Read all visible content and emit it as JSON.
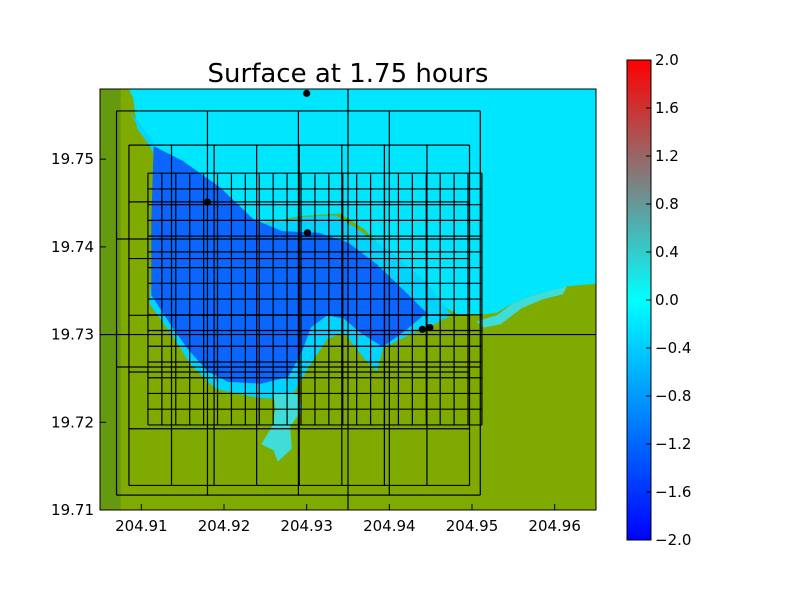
{
  "chart_data": {
    "type": "heatmap",
    "title": "Surface at 1.75 hours",
    "xlim": [
      204.905,
      204.965
    ],
    "ylim": [
      19.71,
      19.758
    ],
    "xticks": [
      204.91,
      204.92,
      204.93,
      204.94,
      204.95,
      204.96
    ],
    "xtick_labels": [
      "204.91",
      "204.92",
      "204.93",
      "204.94",
      "204.95",
      "204.96"
    ],
    "yticks": [
      19.71,
      19.72,
      19.73,
      19.74,
      19.75
    ],
    "ytick_labels": [
      "19.71",
      "19.72",
      "19.73",
      "19.74",
      "19.75"
    ],
    "colorbar": {
      "range": [
        -2.0,
        2.0
      ],
      "ticks": [
        -2.0,
        -1.6,
        -1.2,
        -0.8,
        -0.4,
        0.0,
        0.4,
        0.8,
        1.2,
        1.6,
        2.0
      ],
      "tick_labels": [
        "−2.0",
        "−1.6",
        "−1.2",
        "−0.8",
        "−0.4",
        "0.0",
        "0.4",
        "0.8",
        "1.2",
        "1.6",
        "2.0"
      ],
      "colors": [
        "#0000ff",
        "#00ffff",
        "#ff0000"
      ],
      "mid_color": "#7f7f7f"
    },
    "colors": {
      "land": "#7faa00",
      "land_dark": "#4f8a1e",
      "deep_water": "#0a66ff",
      "shallow_water": "#00d4ff",
      "ocean": "#00e6ff",
      "inundation": "#3fdcd8"
    },
    "refinement_boxes": [
      {
        "level": 1,
        "x": [
          204.9,
          204.97
        ],
        "y": [
          19.7,
          19.76
        ]
      },
      {
        "level": 2,
        "x": [
          204.907,
          204.951
        ],
        "y": [
          19.7117,
          19.7555
        ]
      },
      {
        "level": 3,
        "x": [
          204.9085,
          204.9497
        ],
        "y": [
          19.7128,
          19.7516
        ]
      },
      {
        "level": 4,
        "x": [
          204.9108,
          204.9512
        ],
        "y": [
          19.7197,
          19.7484
        ]
      }
    ],
    "gauges": [
      {
        "x": 204.93,
        "y": 19.7575
      },
      {
        "x": 204.918,
        "y": 19.7451
      },
      {
        "x": 204.9301,
        "y": 19.7416
      },
      {
        "x": 204.944,
        "y": 19.7306
      },
      {
        "x": 204.9449,
        "y": 19.7308
      }
    ],
    "grid": false
  }
}
